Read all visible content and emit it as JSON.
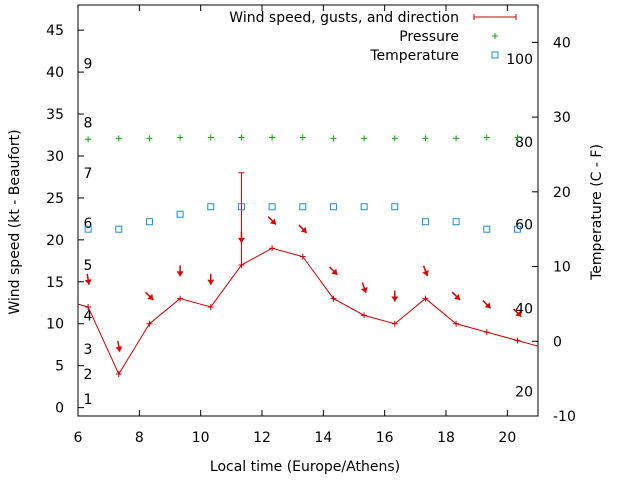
{
  "chart_data": {
    "type": "line",
    "xlabel": "Local time (Europe/Athens)",
    "ylabel": "Wind speed (kt - Beaufort)",
    "y2label": "Temperature (C - F)",
    "xlim": [
      6,
      21
    ],
    "ylim": [
      -1,
      48
    ],
    "y2lim": [
      -10,
      45
    ],
    "x_ticks": [
      6,
      8,
      10,
      12,
      14,
      16,
      18,
      20
    ],
    "y_ticks": [
      0,
      5,
      10,
      15,
      20,
      25,
      30,
      35,
      40,
      45
    ],
    "y2_ticks": [
      -10,
      0,
      10,
      20,
      30,
      40
    ],
    "beaufort_labels": [
      {
        "label": "1",
        "kt": 1
      },
      {
        "label": "2",
        "kt": 4
      },
      {
        "label": "3",
        "kt": 7
      },
      {
        "label": "4",
        "kt": 11
      },
      {
        "label": "5",
        "kt": 17
      },
      {
        "label": "6",
        "kt": 22
      },
      {
        "label": "7",
        "kt": 28
      },
      {
        "label": "8",
        "kt": 34
      },
      {
        "label": "9",
        "kt": 41
      }
    ],
    "fahrenheit_labels": [
      {
        "label": "20",
        "celsius": -6.7
      },
      {
        "label": "40",
        "celsius": 4.4
      },
      {
        "label": "60",
        "celsius": 15.6
      },
      {
        "label": "80",
        "celsius": 26.7
      },
      {
        "label": "100",
        "celsius": 37.8
      }
    ],
    "legend": {
      "placement": "top-right",
      "wind": "Wind speed, gusts, and direction",
      "pressure": "Pressure",
      "temperature": "Temperature"
    },
    "series": [
      {
        "name": "Wind speed, gusts, and direction",
        "axis": "left",
        "color": "#cc0000",
        "x": [
          5.33,
          6.33,
          7.33,
          8.33,
          9.33,
          10.33,
          11.33,
          12.33,
          13.33,
          14.33,
          15.33,
          16.33,
          17.33,
          18.33,
          19.33,
          20.33,
          21.33
        ],
        "y": [
          13,
          12,
          4,
          10,
          13,
          12,
          17,
          19,
          18,
          13,
          11,
          10,
          13,
          10,
          9,
          8,
          7
        ],
        "gusts": [
          null,
          null,
          null,
          null,
          null,
          null,
          28,
          null,
          null,
          null,
          null,
          null,
          null,
          null,
          null,
          null,
          null
        ],
        "direction_deg": [
          null,
          350,
          350,
          315,
          0,
          0,
          0,
          315,
          315,
          315,
          340,
          0,
          340,
          315,
          315,
          315,
          null
        ]
      },
      {
        "name": "Pressure",
        "axis": "left",
        "color": "#00aa00",
        "x": [
          6.33,
          7.33,
          8.33,
          9.33,
          10.33,
          11.33,
          12.33,
          13.33,
          14.33,
          15.33,
          16.33,
          17.33,
          18.33,
          19.33,
          20.33
        ],
        "y": [
          32,
          32.1,
          32.1,
          32.2,
          32.2,
          32.2,
          32.2,
          32.2,
          32.1,
          32.1,
          32.1,
          32.1,
          32.1,
          32.2,
          32.2
        ]
      },
      {
        "name": "Temperature",
        "axis": "right",
        "color": "#1a8fd6",
        "x": [
          6.33,
          7.33,
          8.33,
          9.33,
          10.33,
          11.33,
          12.33,
          13.33,
          14.33,
          15.33,
          16.33,
          17.33,
          18.33,
          19.33,
          20.33
        ],
        "y": [
          15,
          15,
          16,
          17,
          18,
          18,
          18,
          18,
          18,
          18,
          18,
          16,
          16,
          15,
          15
        ]
      }
    ]
  }
}
